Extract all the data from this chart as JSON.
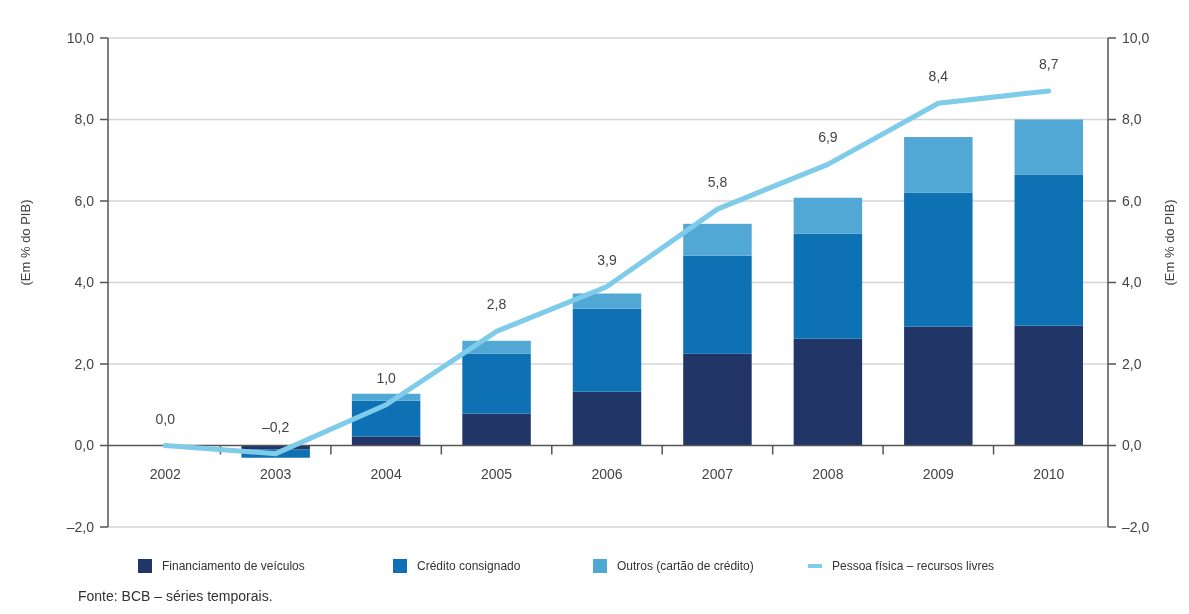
{
  "chart_data": {
    "type": "bar",
    "stacked": true,
    "categories": [
      "2002",
      "2003",
      "2004",
      "2005",
      "2006",
      "2007",
      "2008",
      "2009",
      "2010"
    ],
    "series": [
      {
        "name": "Financiamento de veículos",
        "color": "#213566",
        "values": [
          0,
          -0.1,
          0.22,
          0.78,
          1.32,
          2.25,
          2.62,
          2.92,
          2.94
        ]
      },
      {
        "name": "Crédito consignado",
        "color": "#0e71b4",
        "values": [
          0,
          -0.2,
          0.88,
          1.47,
          2.04,
          2.41,
          2.58,
          3.28,
          3.7
        ]
      },
      {
        "name": "Outros (cartão de crédito)",
        "color": "#52a8d4",
        "values": [
          0,
          0,
          0.17,
          0.32,
          0.37,
          0.78,
          0.88,
          1.37,
          1.36
        ]
      },
      {
        "name": "Pessoa física – recursos livres",
        "type": "line",
        "color": "#7ecbea",
        "values": [
          0,
          -0.2,
          1,
          2.8,
          3.9,
          5.8,
          6.9,
          8.4,
          8.7
        ],
        "value_labels": [
          "0,0",
          "–0,2",
          "1,0",
          "2,8",
          "3,9",
          "5,8",
          "6,9",
          "8,4",
          "8,7"
        ]
      }
    ],
    "ylabel": "(Em % do PIB)",
    "y2label": "(Em % do PIB)",
    "ylim": [
      -2,
      10
    ],
    "yticks": [
      {
        "value": -2,
        "label": "–2,0"
      },
      {
        "value": 0,
        "label": "0,0"
      },
      {
        "value": 2,
        "label": "2,0"
      },
      {
        "value": 4,
        "label": "4,0"
      },
      {
        "value": 6,
        "label": "6,0"
      },
      {
        "value": 8,
        "label": "8,0"
      },
      {
        "value": 10,
        "label": "10,0"
      }
    ],
    "y2lim": [
      -2,
      10
    ],
    "y2ticks": [
      {
        "value": -2,
        "label": "–2,0"
      },
      {
        "value": 0,
        "label": "0,0"
      },
      {
        "value": 2,
        "label": "2,0"
      },
      {
        "value": 4,
        "label": "4,0"
      },
      {
        "value": 6,
        "label": "6,0"
      },
      {
        "value": 8,
        "label": "8,0"
      },
      {
        "value": 10,
        "label": "10,0"
      }
    ],
    "grid": "y",
    "legend": "bottom",
    "annotations": [
      "Fonte: BCB – séries temporais."
    ]
  }
}
